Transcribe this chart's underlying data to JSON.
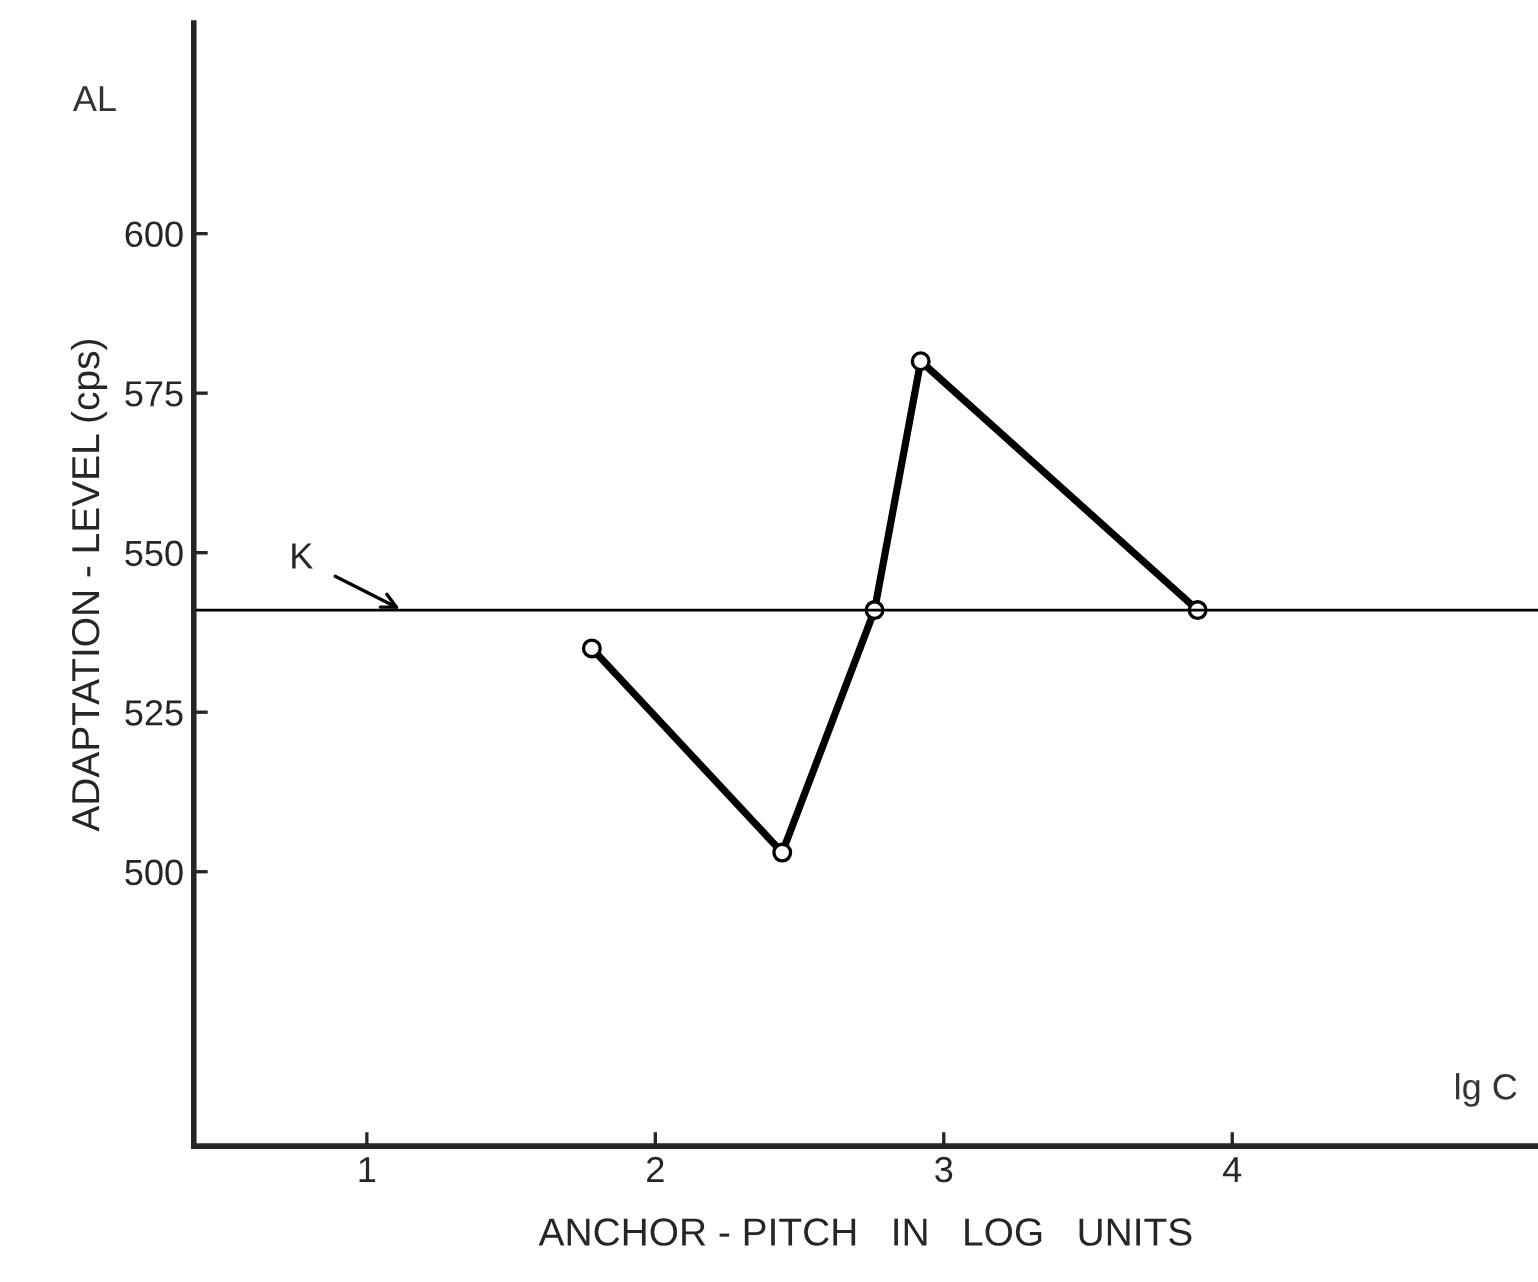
{
  "chart_data": {
    "type": "line",
    "xlabel": "ANCHOR - PITCH   IN   LOG   UNITS",
    "ylabel": "ADAPTATION - LEVEL (cps)",
    "x": [
      1.78,
      2.44,
      2.76,
      2.92,
      3.88
    ],
    "series": [
      {
        "color": "#000000",
        "values": [
          535,
          503,
          541,
          580,
          541
        ]
      }
    ],
    "xlim": [
      0.4,
      5.06
    ],
    "xticks": [
      1,
      2,
      3,
      4
    ],
    "ylim": [
      457,
      633
    ],
    "yticks": [
      500,
      525,
      550,
      575,
      600
    ],
    "ref_lines": [
      {
        "axis": "y",
        "value": 541,
        "label": "K",
        "color": "#000000",
        "line_style": "solid"
      }
    ],
    "annotations": [
      "AL",
      "lg C"
    ],
    "marker": "circle",
    "line_style": "solid",
    "grid": false,
    "legend": false
  }
}
